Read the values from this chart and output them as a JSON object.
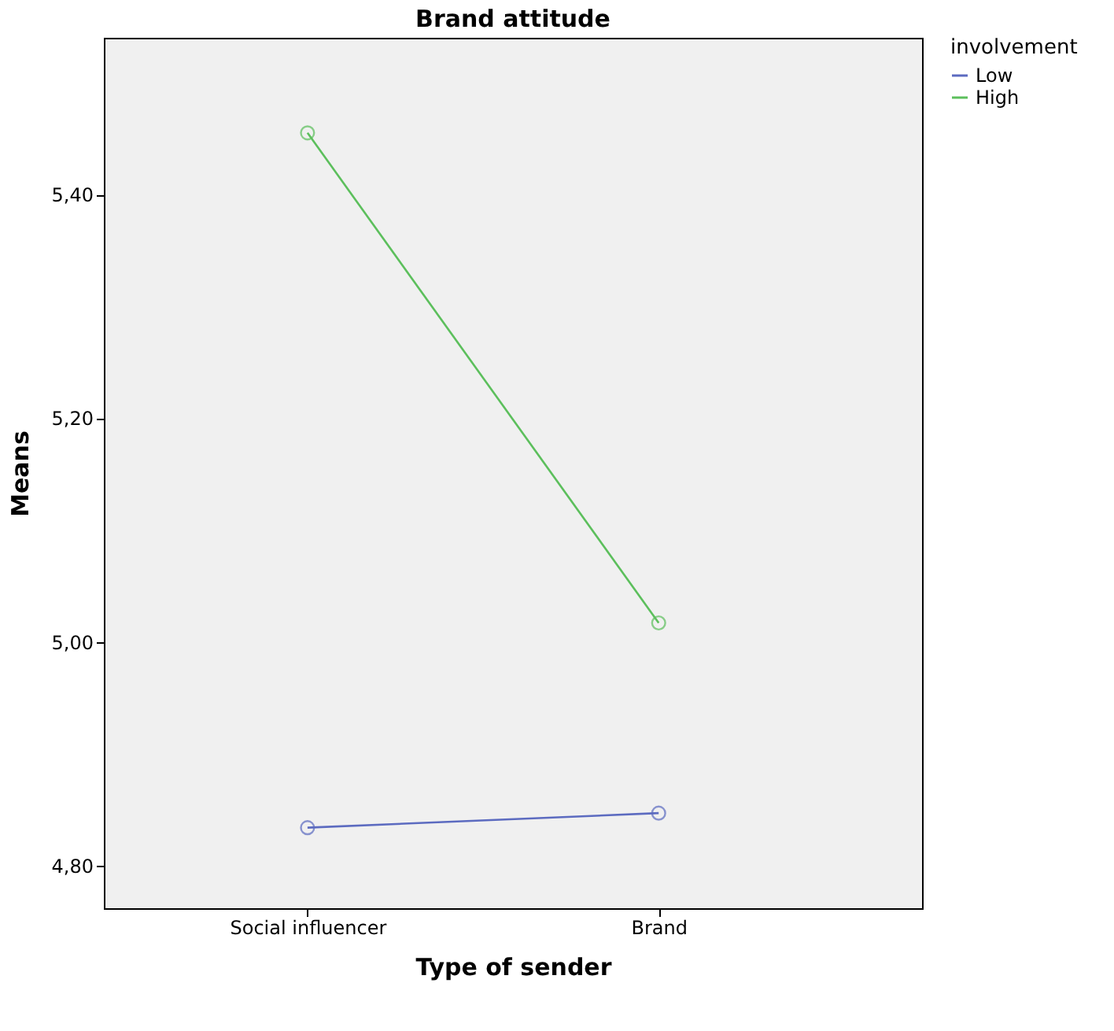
{
  "chart_data": {
    "type": "line",
    "title": "Brand attitude",
    "xlabel": "Type of sender",
    "ylabel": "Means",
    "legend_title": "involvement",
    "categories": [
      "Social influencer",
      "Brand"
    ],
    "series": [
      {
        "name": "Low",
        "color": "#5c6bc0",
        "values": [
          4.834,
          4.847
        ]
      },
      {
        "name": "High",
        "color": "#5cbf5c",
        "values": [
          5.455,
          5.017
        ]
      }
    ],
    "ylim": [
      4.762,
      5.54
    ],
    "yticks": [
      {
        "value": 4.8,
        "label": "4,80"
      },
      {
        "value": 5.0,
        "label": "5,00"
      },
      {
        "value": 5.2,
        "label": "5,20"
      },
      {
        "value": 5.4,
        "label": "5,40"
      }
    ],
    "marker": "circle",
    "line_style": "solid",
    "grid": false,
    "legend": "top right"
  }
}
